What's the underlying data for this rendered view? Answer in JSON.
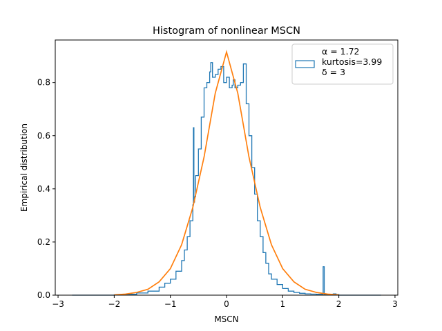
{
  "chart_data": {
    "type": "line",
    "title": "Histogram of nonlinear MSCN",
    "xlabel": "MSCN",
    "ylabel": "Empirical distribution",
    "xlim": [
      -3.05,
      3.05
    ],
    "ylim": [
      0,
      0.96
    ],
    "xticks": [
      -3,
      -2,
      -1,
      0,
      1,
      2,
      3
    ],
    "xtick_labels": [
      "−3",
      "−2",
      "−1",
      "0",
      "1",
      "2",
      "3"
    ],
    "yticks": [
      0.0,
      0.2,
      0.4,
      0.6,
      0.8
    ],
    "ytick_labels": [
      "0.0",
      "0.2",
      "0.4",
      "0.6",
      "0.8"
    ],
    "grid": false,
    "legend_position": "top-right",
    "legend_lines": [
      "α = 1.72",
      "kurtosis=3.99",
      "δ = 3"
    ],
    "colors": {
      "histogram": "#1f77b4",
      "fit": "#ff7f0e",
      "axes": "#000000"
    },
    "series": [
      {
        "kind": "step-histogram",
        "x": [
          -2.75,
          -2.4,
          -2.0,
          -1.8,
          -1.6,
          -1.4,
          -1.2,
          -1.1,
          -1.0,
          -0.9,
          -0.8,
          -0.75,
          -0.7,
          -0.65,
          -0.6,
          -0.59,
          -0.58,
          -0.57,
          -0.55,
          -0.5,
          -0.45,
          -0.4,
          -0.35,
          -0.3,
          -0.28,
          -0.25,
          -0.2,
          -0.15,
          -0.1,
          -0.05,
          0.0,
          0.05,
          0.1,
          0.12,
          0.15,
          0.2,
          0.25,
          0.3,
          0.35,
          0.4,
          0.45,
          0.5,
          0.55,
          0.6,
          0.65,
          0.7,
          0.75,
          0.8,
          0.9,
          1.0,
          1.1,
          1.2,
          1.3,
          1.4,
          1.5,
          1.6,
          1.7,
          1.72,
          1.74,
          1.8,
          1.9,
          1.95,
          2.0,
          2.4,
          2.75
        ],
        "y": [
          0.0,
          0.0,
          0.001,
          0.003,
          0.008,
          0.015,
          0.03,
          0.045,
          0.06,
          0.09,
          0.13,
          0.17,
          0.22,
          0.28,
          0.34,
          0.63,
          0.35,
          0.37,
          0.45,
          0.55,
          0.67,
          0.78,
          0.8,
          0.84,
          0.875,
          0.82,
          0.83,
          0.85,
          0.86,
          0.8,
          0.82,
          0.78,
          0.79,
          0.81,
          0.78,
          0.79,
          0.8,
          0.87,
          0.72,
          0.6,
          0.48,
          0.38,
          0.28,
          0.22,
          0.16,
          0.12,
          0.08,
          0.06,
          0.04,
          0.025,
          0.015,
          0.01,
          0.007,
          0.005,
          0.004,
          0.003,
          0.003,
          0.107,
          0.003,
          0.003,
          0.005,
          0.002,
          0.0,
          0.0,
          0.0
        ]
      },
      {
        "kind": "curve",
        "x": [
          -2.0,
          -1.8,
          -1.6,
          -1.4,
          -1.2,
          -1.0,
          -0.8,
          -0.6,
          -0.4,
          -0.2,
          0.0,
          0.2,
          0.4,
          0.6,
          0.8,
          1.0,
          1.2,
          1.4,
          1.6,
          1.8,
          2.0
        ],
        "y": [
          0.001,
          0.004,
          0.01,
          0.022,
          0.05,
          0.1,
          0.19,
          0.33,
          0.52,
          0.76,
          0.915,
          0.76,
          0.52,
          0.33,
          0.19,
          0.1,
          0.05,
          0.022,
          0.01,
          0.004,
          0.001
        ]
      }
    ]
  }
}
